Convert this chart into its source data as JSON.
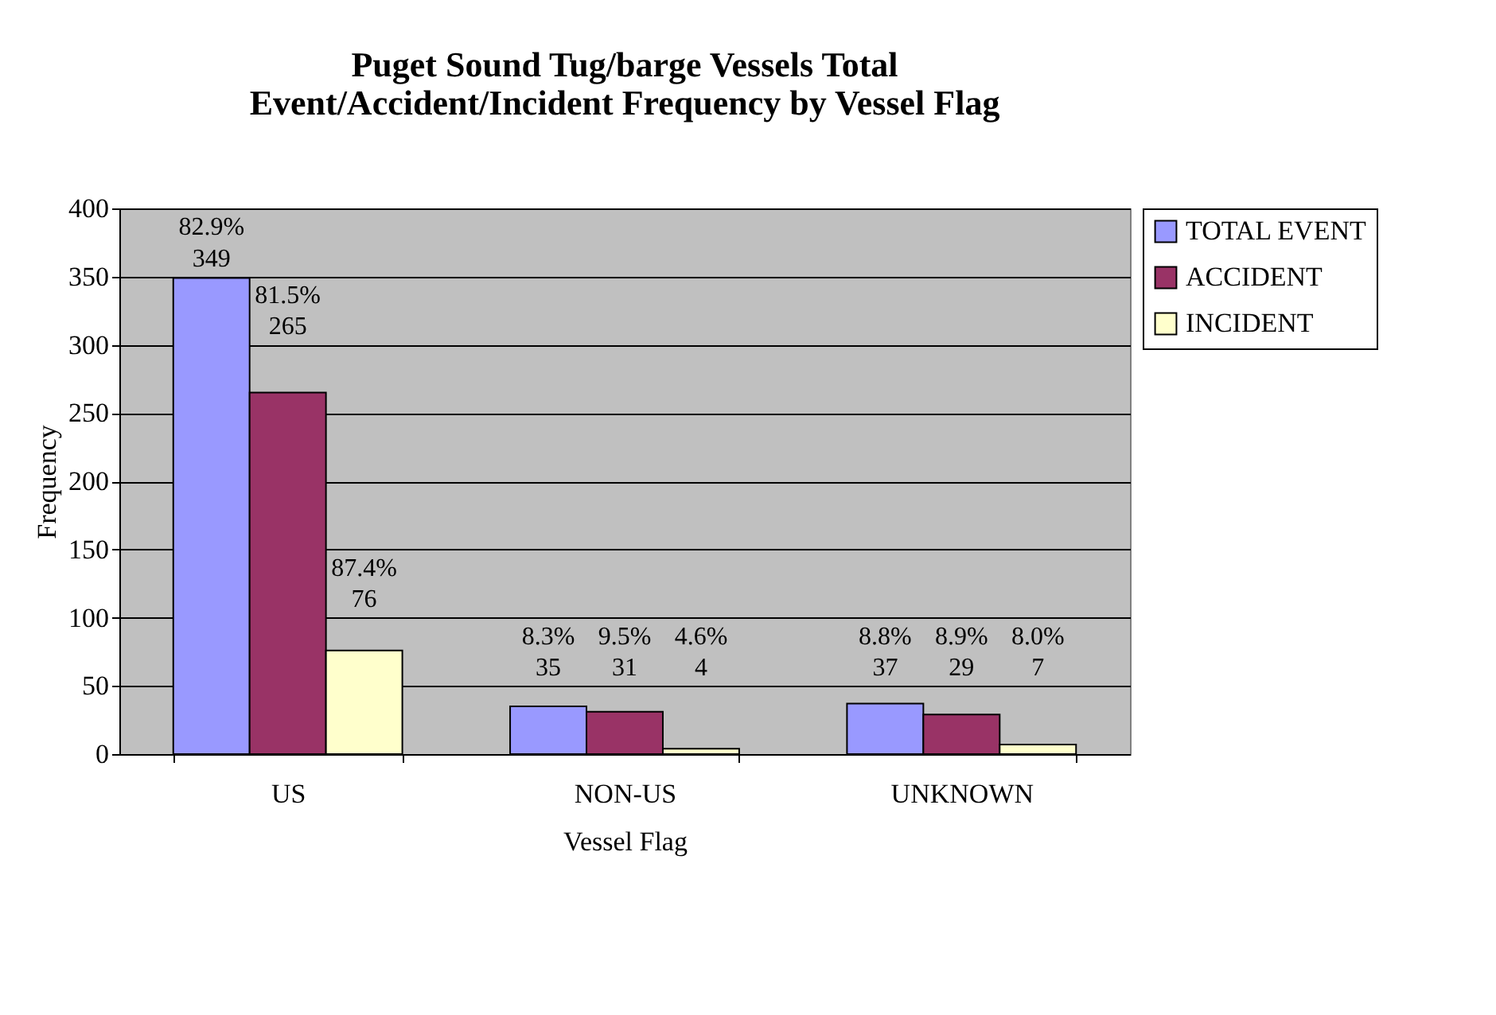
{
  "chart_data": {
    "type": "bar",
    "title": "Puget Sound Tug/barge Vessels Total\nEvent/Accident/Incident Frequency by Vessel Flag",
    "xlabel": "Vessel Flag",
    "ylabel": "Frequency",
    "categories": [
      "US",
      "NON-US",
      "UNKNOWN"
    ],
    "series": [
      {
        "name": "TOTAL EVENT",
        "color": "#9999ff",
        "values": [
          349,
          35,
          37
        ]
      },
      {
        "name": "ACCIDENT",
        "color": "#993366",
        "values": [
          265,
          31,
          29
        ]
      },
      {
        "name": "INCIDENT",
        "color": "#ffffcc",
        "values": [
          76,
          4,
          7
        ]
      }
    ],
    "ylim": [
      0,
      400
    ],
    "yticks": [
      0,
      50,
      100,
      150,
      200,
      250,
      300,
      350,
      400
    ],
    "grid": "y",
    "legend": "right",
    "data_labels": true,
    "annotations": [
      "82.9%",
      "81.5%",
      "87.4%",
      "8.3%",
      "9.5%",
      "4.6%",
      "8.8%",
      "8.9%",
      "8.0%"
    ]
  }
}
